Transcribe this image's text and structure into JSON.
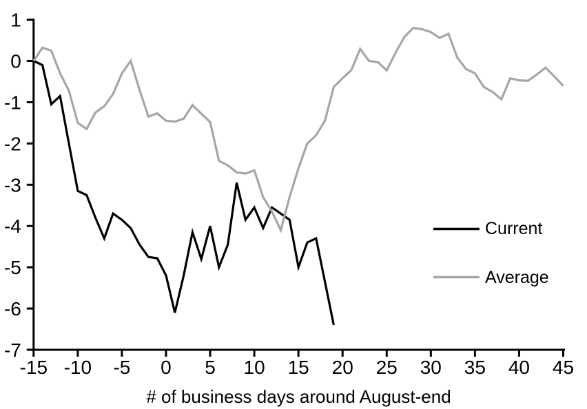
{
  "page": {
    "background": "#ffffff"
  },
  "legend": {
    "items": [
      {
        "label": "Current",
        "color": "#000000"
      },
      {
        "label": "Average",
        "color": "#a6a6a6"
      }
    ]
  },
  "chart_data": {
    "type": "line",
    "title": "",
    "xlabel": "# of business days around August-end",
    "ylabel": "",
    "xlim": [
      -15,
      45
    ],
    "ylim": [
      -7,
      1
    ],
    "x_ticks": [
      -15,
      -10,
      -5,
      0,
      5,
      10,
      15,
      20,
      25,
      30,
      35,
      40,
      45
    ],
    "y_ticks": [
      1,
      0,
      -1,
      -2,
      -3,
      -4,
      -5,
      -6,
      -7
    ],
    "grid": false,
    "legend_position": "right-middle",
    "series": [
      {
        "name": "Current",
        "color": "#000000",
        "x_start": -15,
        "x_step": 1,
        "values": [
          0,
          -0.1,
          -1.05,
          -0.85,
          -2.0,
          -3.15,
          -3.25,
          -3.8,
          -4.3,
          -3.7,
          -3.85,
          -4.05,
          -4.45,
          -4.75,
          -4.78,
          -5.2,
          -6.1,
          -5.2,
          -4.15,
          -4.8,
          -4.0,
          -5.0,
          -4.45,
          -2.95,
          -3.85,
          -3.55,
          -4.05,
          -3.55,
          -3.7,
          -3.85,
          -5.0,
          -4.4,
          -4.3,
          -5.35,
          -6.4
        ]
      },
      {
        "name": "Average",
        "color": "#a6a6a6",
        "x_start": -15,
        "x_step": 1,
        "values": [
          0,
          0.32,
          0.25,
          -0.3,
          -0.72,
          -1.5,
          -1.65,
          -1.25,
          -1.1,
          -0.8,
          -0.3,
          0.0,
          -0.7,
          -1.35,
          -1.27,
          -1.45,
          -1.47,
          -1.4,
          -1.07,
          -1.28,
          -1.48,
          -2.42,
          -2.53,
          -2.7,
          -2.73,
          -2.65,
          -3.3,
          -3.65,
          -4.1,
          -3.3,
          -2.6,
          -2.0,
          -1.8,
          -1.45,
          -0.63,
          -0.42,
          -0.22,
          0.29,
          0.0,
          -0.03,
          -0.23,
          0.2,
          0.58,
          0.8,
          0.77,
          0.7,
          0.56,
          0.66,
          0.08,
          -0.2,
          -0.3,
          -0.63,
          -0.75,
          -0.93,
          -0.42,
          -0.47,
          -0.48,
          -0.33,
          -0.16,
          -0.38,
          -0.6
        ]
      }
    ]
  }
}
